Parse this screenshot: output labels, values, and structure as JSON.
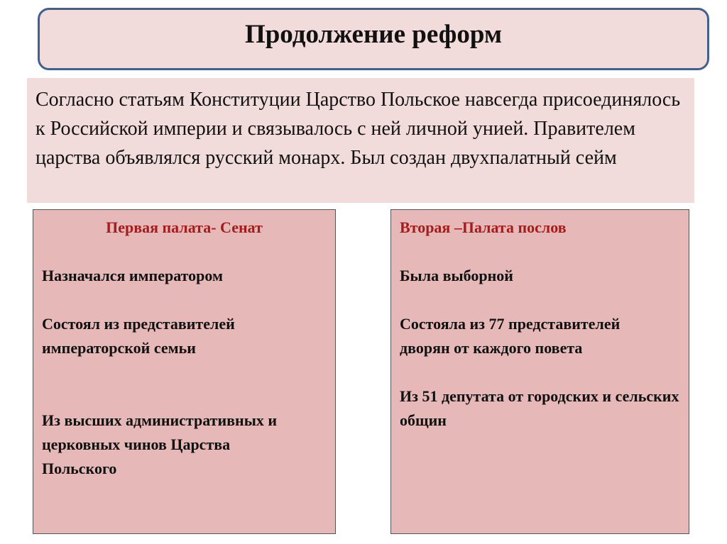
{
  "title": "Продолжение реформ",
  "intro": "Согласно статьям Конституции  Царство Польское навсегда присоединялось к Российской империи и связывалось с ней  личной унией. Правителем царства объявлялся русский монарх. Был создан двухпалатный сейм",
  "colors": {
    "title_fill": "#f2dcdb",
    "title_border": "#41608f",
    "column_fill": "#e6b9b8",
    "heading_red": "#a51c1c"
  },
  "senate": {
    "heading": "Первая палата- Сенат",
    "items": [
      "Назначался императором",
      "Состоял из представителей императорской семьи",
      "Из высших административных и церковных чинов Царства Польского"
    ]
  },
  "deputies": {
    "heading": "Вторая –Палата послов",
    "items": [
      "Была выборной",
      "Состояла из 77 представителей дворян от каждого повета",
      "Из  51 депутата от городских и сельских общин"
    ]
  }
}
